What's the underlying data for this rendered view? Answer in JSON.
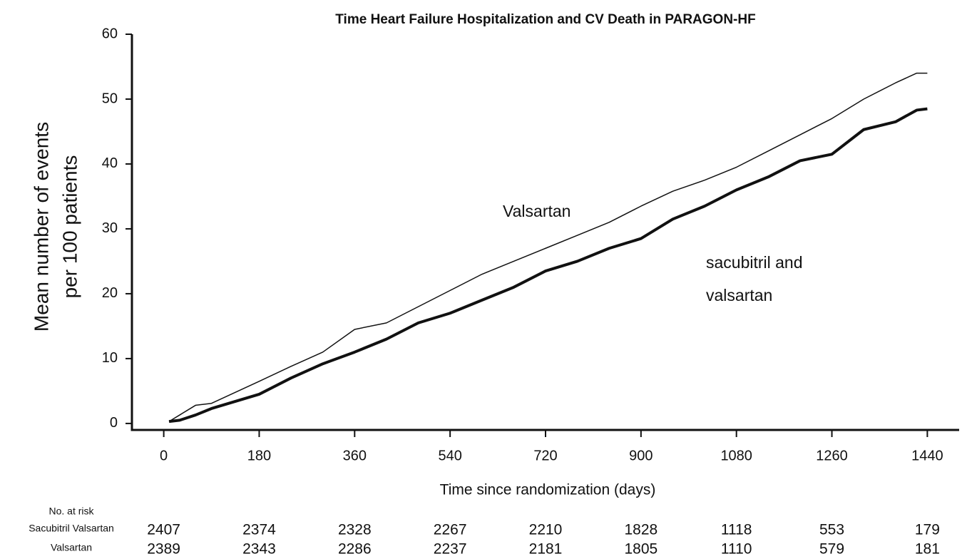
{
  "chart_data": {
    "type": "line",
    "title": "Time Heart Failure Hospitalization and CV Death in PARAGON-HF",
    "xlabel": "Time since randomization (days)",
    "ylabel": [
      "Mean number of events",
      "per 100 patients"
    ],
    "annotations": [
      "Valsartan",
      "sacubitril and",
      "valsartan"
    ],
    "x": [
      10,
      30,
      60,
      90,
      180,
      240,
      300,
      360,
      420,
      480,
      540,
      600,
      660,
      720,
      780,
      840,
      900,
      960,
      1020,
      1080,
      1140,
      1200,
      1260,
      1320,
      1380,
      1420,
      1440
    ],
    "series": [
      {
        "color": "#111111",
        "width": 1.5,
        "values": [
          0.3,
          1.3,
          2.8,
          3.1,
          6.5,
          8.8,
          11,
          14.5,
          15.5,
          18,
          20.5,
          23,
          25,
          27,
          29,
          31,
          33.5,
          35.8,
          37.5,
          39.5,
          42,
          44.5,
          47,
          50,
          52.5,
          54,
          54
        ]
      },
      {
        "color": "#111111",
        "width": 4,
        "values": [
          0.3,
          0.5,
          1.3,
          2.3,
          4.5,
          7,
          9.2,
          11,
          13,
          15.5,
          17,
          19,
          21,
          23.5,
          25,
          27,
          28.5,
          31.5,
          33.5,
          36,
          38,
          40.5,
          41.5,
          45.3,
          46.5,
          48.3,
          48.5
        ]
      }
    ],
    "xlim": [
      -60,
      1500
    ],
    "ylim": [
      -1,
      60
    ],
    "xticks": [
      0,
      180,
      360,
      540,
      720,
      900,
      1080,
      1260,
      1440
    ],
    "yticks": [
      0,
      10,
      20,
      30,
      40,
      50,
      60
    ],
    "risk_table": {
      "title": "No. at risk",
      "rows": [
        {
          "name": "Sacubitril Valsartan",
          "values": [
            2407,
            2374,
            2328,
            2267,
            2210,
            1828,
            1118,
            553,
            179
          ]
        },
        {
          "name": "Valsartan",
          "values": [
            2389,
            2343,
            2286,
            2237,
            2181,
            1805,
            1110,
            579,
            181
          ]
        }
      ]
    }
  }
}
